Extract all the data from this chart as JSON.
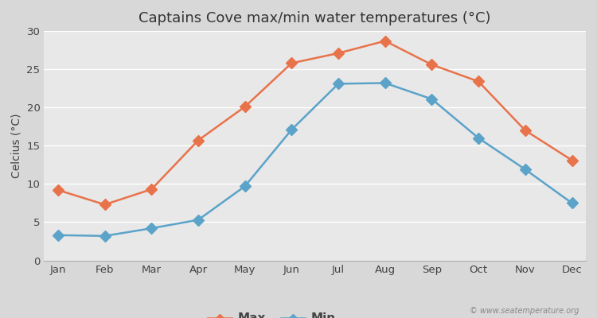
{
  "months": [
    "Jan",
    "Feb",
    "Mar",
    "Apr",
    "May",
    "Jun",
    "Jul",
    "Aug",
    "Sep",
    "Oct",
    "Nov",
    "Dec"
  ],
  "max_temps": [
    9.2,
    7.3,
    9.3,
    15.7,
    20.1,
    25.8,
    27.1,
    28.7,
    25.6,
    23.4,
    17.0,
    13.1
  ],
  "min_temps": [
    3.3,
    3.2,
    4.2,
    5.3,
    9.7,
    17.1,
    23.1,
    23.2,
    21.1,
    16.0,
    11.9,
    7.5
  ],
  "max_color": "#e8724a",
  "min_color": "#5ba3c9",
  "title": "Captains Cove max/min water temperatures (°C)",
  "ylabel": "Celcius (°C)",
  "ylim": [
    0,
    30
  ],
  "yticks": [
    0,
    5,
    10,
    15,
    20,
    25,
    30
  ],
  "bg_color": "#d8d8d8",
  "plot_bg_color": "#e8e8e8",
  "grid_color": "#ffffff",
  "watermark": "© www.seatemperature.org",
  "legend_labels": [
    "Max",
    "Min"
  ],
  "title_fontsize": 13,
  "label_fontsize": 10,
  "tick_fontsize": 9.5,
  "marker_size": 7,
  "line_width": 1.8
}
